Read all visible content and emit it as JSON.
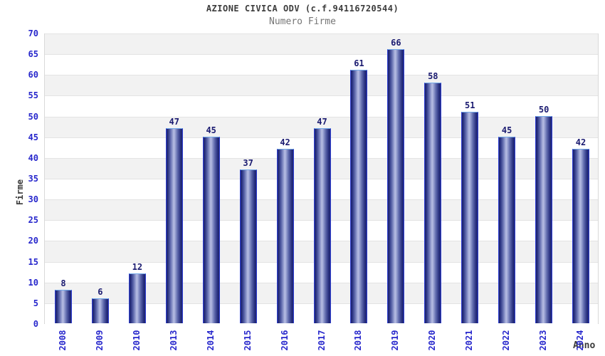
{
  "title": "AZIONE CIVICA ODV (c.f.94116720544)",
  "subtitle": "Numero Firme",
  "chart_data": {
    "type": "bar",
    "title": "AZIONE CIVICA ODV (c.f.94116720544)",
    "subtitle": "Numero Firme",
    "categories": [
      "2008",
      "2009",
      "2010",
      "2013",
      "2014",
      "2015",
      "2016",
      "2017",
      "2018",
      "2019",
      "2020",
      "2021",
      "2022",
      "2023",
      "2024"
    ],
    "values": [
      8,
      6,
      12,
      47,
      45,
      37,
      42,
      47,
      61,
      66,
      58,
      51,
      45,
      50,
      42
    ],
    "xlabel": "Anno",
    "ylabel": "Firme",
    "ylim": [
      0,
      70
    ],
    "ytick_step": 5,
    "yticks": [
      0,
      5,
      10,
      15,
      20,
      25,
      30,
      35,
      40,
      45,
      50,
      55,
      60,
      65,
      70
    ],
    "grid": true,
    "legend_position": "none",
    "colors": {
      "bar_dark": "#1e2470",
      "bar_light": "#b7bde2",
      "bar_border": "#2f3fd3",
      "bar_top_border": "#74a9e8",
      "tick_label": "#2727cc",
      "value_label": "#1a1a70",
      "band_gray": "#f2f2f2",
      "band_white": "#ffffff",
      "gridline": "#e3e3e3",
      "title_color": "#3c3c3c",
      "subtitle_color": "#757575",
      "axis_title_color": "#3a3a3a"
    }
  }
}
